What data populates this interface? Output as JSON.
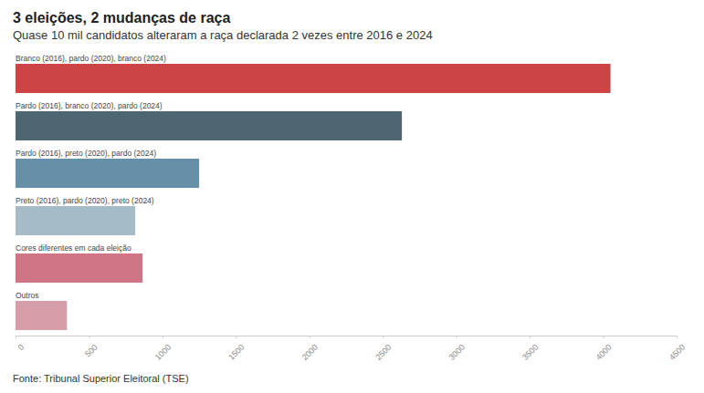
{
  "chart_data": {
    "type": "bar",
    "orientation": "horizontal",
    "title": "3 eleições, 2 mudanças de raça",
    "subtitle": "Quase 10 mil candidatos alteraram a raça declarada 2 vezes entre 2016 e 2024",
    "source": "Fonte: Tribunal Superior Eleitoral (TSE)",
    "categories": [
      "Branco (2016), pardo (2020), branco (2024)",
      "Pardo (2016), branco (2020), pardo (2024)",
      "Pardo (2016), preto (2020), pardo (2024)",
      "Preto (2016), pardo (2020), preto (2024)",
      "Cores diferentes em cada eleição",
      "Outros"
    ],
    "values": [
      4050,
      2630,
      1250,
      815,
      865,
      350
    ],
    "colors": [
      "#cc4444",
      "#4d6672",
      "#6690a8",
      "#a5bcc8",
      "#cf7585",
      "#d69ea8"
    ],
    "xlim": [
      0,
      4500
    ],
    "xticks": [
      0,
      500,
      1000,
      1500,
      2000,
      2500,
      3000,
      3500,
      4000,
      4500
    ],
    "grid": false
  }
}
